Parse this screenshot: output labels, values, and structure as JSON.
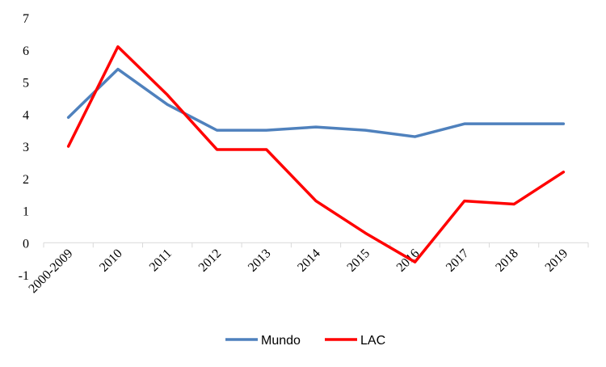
{
  "chart_data": {
    "type": "line",
    "title": "",
    "xlabel": "",
    "ylabel": "",
    "categories": [
      "2000-2009",
      "2010",
      "2011",
      "2012",
      "2013",
      "2014",
      "2015",
      "2016",
      "2017",
      "2018",
      "2019"
    ],
    "ylim": [
      -1,
      7
    ],
    "yticks": [
      "-1",
      "0",
      "1",
      "2",
      "3",
      "4",
      "5",
      "6",
      "7"
    ],
    "grid": false,
    "legend_position": "bottom",
    "series": [
      {
        "name": "Mundo",
        "color": "#4F81BD",
        "values": [
          3.9,
          5.4,
          4.3,
          3.5,
          3.5,
          3.6,
          3.5,
          3.3,
          3.7,
          3.7,
          3.7
        ]
      },
      {
        "name": "LAC",
        "color": "#FF0000",
        "values": [
          3.0,
          6.1,
          4.6,
          2.9,
          2.9,
          1.3,
          0.3,
          -0.6,
          1.3,
          1.2,
          2.2
        ]
      }
    ]
  }
}
